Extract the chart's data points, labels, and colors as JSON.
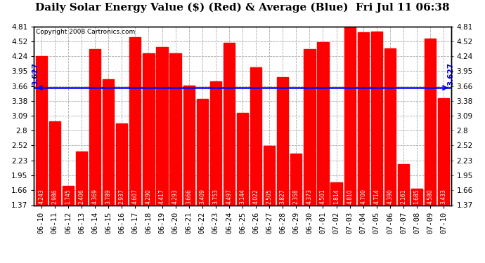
{
  "title": "Daily Solar Energy Value ($) (Red) & Average (Blue)  Fri Jul 11 06:38",
  "copyright": "Copyright 2008 Cartronics.com",
  "average_value": 3.627,
  "average_label": "3.627",
  "categories": [
    "06-10",
    "06-11",
    "06-12",
    "06-13",
    "06-14",
    "06-15",
    "06-16",
    "06-17",
    "06-18",
    "06-19",
    "06-20",
    "06-21",
    "06-22",
    "06-23",
    "06-24",
    "06-25",
    "06-26",
    "06-27",
    "06-28",
    "06-29",
    "06-30",
    "07-01",
    "07-02",
    "07-03",
    "07-04",
    "07-05",
    "07-06",
    "07-07",
    "07-08",
    "07-09",
    "07-10"
  ],
  "values": [
    4.243,
    2.986,
    1.745,
    2.406,
    4.369,
    3.789,
    2.937,
    4.607,
    4.29,
    4.417,
    4.293,
    3.666,
    3.409,
    3.753,
    4.497,
    3.144,
    4.022,
    2.505,
    3.827,
    2.358,
    4.373,
    4.501,
    1.814,
    4.81,
    4.7,
    4.714,
    4.39,
    2.161,
    1.685,
    4.58,
    3.433
  ],
  "bar_color": "#ff0000",
  "avg_line_color": "#0000ff",
  "background_color": "#ffffff",
  "plot_bg_color": "#ffffff",
  "grid_color": "#aaaaaa",
  "ylim_min": 1.37,
  "ylim_max": 4.81,
  "yticks": [
    1.37,
    1.66,
    1.95,
    2.23,
    2.52,
    2.8,
    3.09,
    3.38,
    3.66,
    3.95,
    4.24,
    4.52,
    4.81
  ],
  "title_fontsize": 11,
  "copyright_fontsize": 6.5,
  "tick_fontsize": 7.5,
  "bar_label_fontsize": 5.5
}
